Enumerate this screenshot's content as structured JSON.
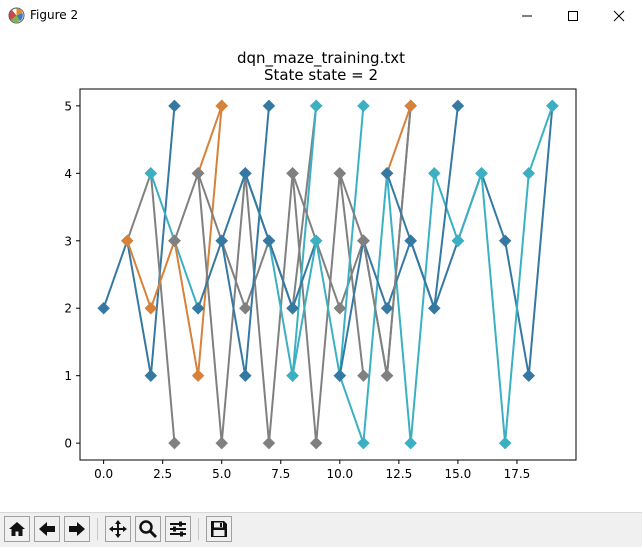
{
  "window": {
    "title": "Figure 2",
    "app_icon": "matplotlib-icon",
    "controls": [
      "minimize-icon",
      "maximize-icon",
      "close-icon"
    ]
  },
  "toolbar": {
    "buttons": [
      "home-icon",
      "back-arrow-icon",
      "forward-arrow-icon",
      "pan-icon",
      "zoom-icon",
      "configure-subplots-icon",
      "save-icon"
    ]
  },
  "chart_data": {
    "type": "line",
    "title": "dqn_maze_training.txt",
    "subtitle": "State state = 2",
    "xlabel": "",
    "ylabel": "",
    "xlim": [
      -1,
      20
    ],
    "ylim": [
      -0.25,
      5.25
    ],
    "xticks": [
      0.0,
      2.5,
      5.0,
      7.5,
      10.0,
      12.5,
      15.0,
      17.5
    ],
    "xtick_labels": [
      "0.0",
      "2.5",
      "5.0",
      "7.5",
      "10.0",
      "12.5",
      "15.0",
      "17.5"
    ],
    "yticks": [
      0,
      1,
      2,
      3,
      4,
      5
    ],
    "ytick_labels": [
      "0",
      "1",
      "2",
      "3",
      "4",
      "5"
    ],
    "grid": false,
    "marker": "diamond",
    "series": [
      {
        "color": "#3579a3",
        "points": [
          [
            0,
            2
          ],
          [
            1,
            3
          ],
          [
            2,
            1
          ],
          [
            3,
            5
          ]
        ]
      },
      {
        "color": "#808080",
        "points": [
          [
            1,
            3
          ],
          [
            2,
            4
          ],
          [
            3,
            0
          ]
        ]
      },
      {
        "color": "#3bb0c2",
        "points": [
          [
            2,
            4
          ],
          [
            3,
            3
          ],
          [
            4,
            2
          ]
        ]
      },
      {
        "color": "#d6823a",
        "points": [
          [
            1,
            3
          ],
          [
            2,
            2
          ],
          [
            3,
            3
          ],
          [
            4,
            1
          ],
          [
            5,
            5
          ]
        ]
      },
      {
        "color": "#d6823a",
        "points": [
          [
            4,
            4
          ],
          [
            5,
            5
          ]
        ]
      },
      {
        "color": "#808080",
        "points": [
          [
            3,
            3
          ],
          [
            4,
            4
          ],
          [
            5,
            0
          ],
          [
            6,
            4
          ],
          [
            7,
            0
          ],
          [
            8,
            4
          ],
          [
            9,
            0
          ],
          [
            10,
            4
          ],
          [
            11,
            1
          ]
        ]
      },
      {
        "color": "#808080",
        "points": [
          [
            4,
            4
          ],
          [
            5,
            3
          ],
          [
            6,
            2
          ],
          [
            7,
            3
          ],
          [
            8,
            2
          ],
          [
            9,
            5
          ]
        ]
      },
      {
        "color": "#3579a3",
        "points": [
          [
            4,
            2
          ],
          [
            5,
            3
          ],
          [
            6,
            1
          ],
          [
            7,
            5
          ]
        ]
      },
      {
        "color": "#3bb0c2",
        "points": [
          [
            6,
            4
          ],
          [
            7,
            3
          ],
          [
            8,
            1
          ],
          [
            9,
            5
          ]
        ]
      },
      {
        "color": "#3579a3",
        "points": [
          [
            5,
            3
          ],
          [
            6,
            4
          ],
          [
            7,
            3
          ],
          [
            8,
            2
          ],
          [
            9,
            3
          ]
        ]
      },
      {
        "color": "#808080",
        "points": [
          [
            8,
            4
          ],
          [
            9,
            3
          ],
          [
            10,
            2
          ],
          [
            11,
            3
          ],
          [
            12,
            1
          ],
          [
            13,
            5
          ]
        ]
      },
      {
        "color": "#3bb0c2",
        "points": [
          [
            8,
            1
          ],
          [
            9,
            3
          ],
          [
            10,
            1
          ],
          [
            11,
            5
          ]
        ]
      },
      {
        "color": "#3bb0c2",
        "points": [
          [
            10,
            1
          ],
          [
            11,
            0
          ],
          [
            12,
            4
          ],
          [
            13,
            0
          ],
          [
            14,
            4
          ],
          [
            15,
            3
          ]
        ]
      },
      {
        "color": "#3579a3",
        "points": [
          [
            10,
            1
          ],
          [
            11,
            3
          ],
          [
            12,
            2
          ],
          [
            13,
            3
          ],
          [
            14,
            2
          ],
          [
            15,
            5
          ]
        ]
      },
      {
        "color": "#808080",
        "points": [
          [
            10,
            4
          ],
          [
            11,
            3
          ],
          [
            12,
            1
          ],
          [
            13,
            5
          ]
        ]
      },
      {
        "color": "#d6823a",
        "points": [
          [
            12,
            4
          ],
          [
            13,
            5
          ]
        ]
      },
      {
        "color": "#3579a3",
        "points": [
          [
            12,
            4
          ],
          [
            13,
            3
          ],
          [
            14,
            2
          ],
          [
            15,
            3
          ],
          [
            16,
            4
          ],
          [
            17,
            3
          ],
          [
            18,
            1
          ],
          [
            19,
            5
          ]
        ]
      },
      {
        "color": "#3bb0c2",
        "points": [
          [
            15,
            3
          ],
          [
            16,
            4
          ],
          [
            17,
            0
          ],
          [
            18,
            4
          ],
          [
            19,
            5
          ]
        ]
      }
    ]
  }
}
